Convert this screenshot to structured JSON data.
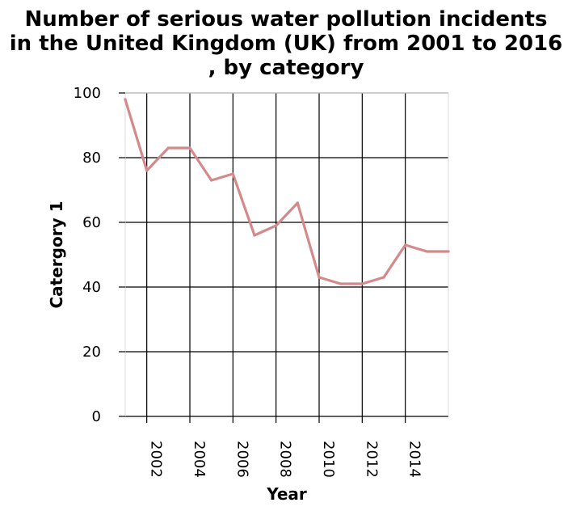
{
  "chart_data": {
    "type": "line",
    "title_lines": [
      "Number of serious water pollution incidents",
      "in the United Kingdom (UK) from 2001 to 2016",
      ", by category"
    ],
    "xlabel": "Year",
    "ylabel": "Catergory 1",
    "xlim": [
      2001,
      2016
    ],
    "ylim": [
      0,
      100
    ],
    "x_ticks": [
      2002,
      2004,
      2006,
      2008,
      2010,
      2012,
      2014
    ],
    "x_tick_labels": [
      "2002",
      "2004",
      "2006",
      "2008",
      "2010",
      "2012",
      "2014"
    ],
    "y_ticks": [
      0,
      20,
      40,
      60,
      80,
      100
    ],
    "y_tick_labels": [
      "0",
      "20",
      "40",
      "60",
      "80",
      "100"
    ],
    "grid": true,
    "line_color": "#d4898b",
    "grid_color": "#000000",
    "series": [
      {
        "x": [
          2001,
          2002,
          2003,
          2004,
          2005,
          2006,
          2007,
          2008,
          2009,
          2010,
          2011,
          2012,
          2013,
          2014,
          2015,
          2016
        ],
        "values": [
          98,
          76,
          83,
          83,
          73,
          75,
          56,
          59,
          66,
          43,
          41,
          41,
          43,
          53,
          51,
          51
        ]
      }
    ]
  }
}
